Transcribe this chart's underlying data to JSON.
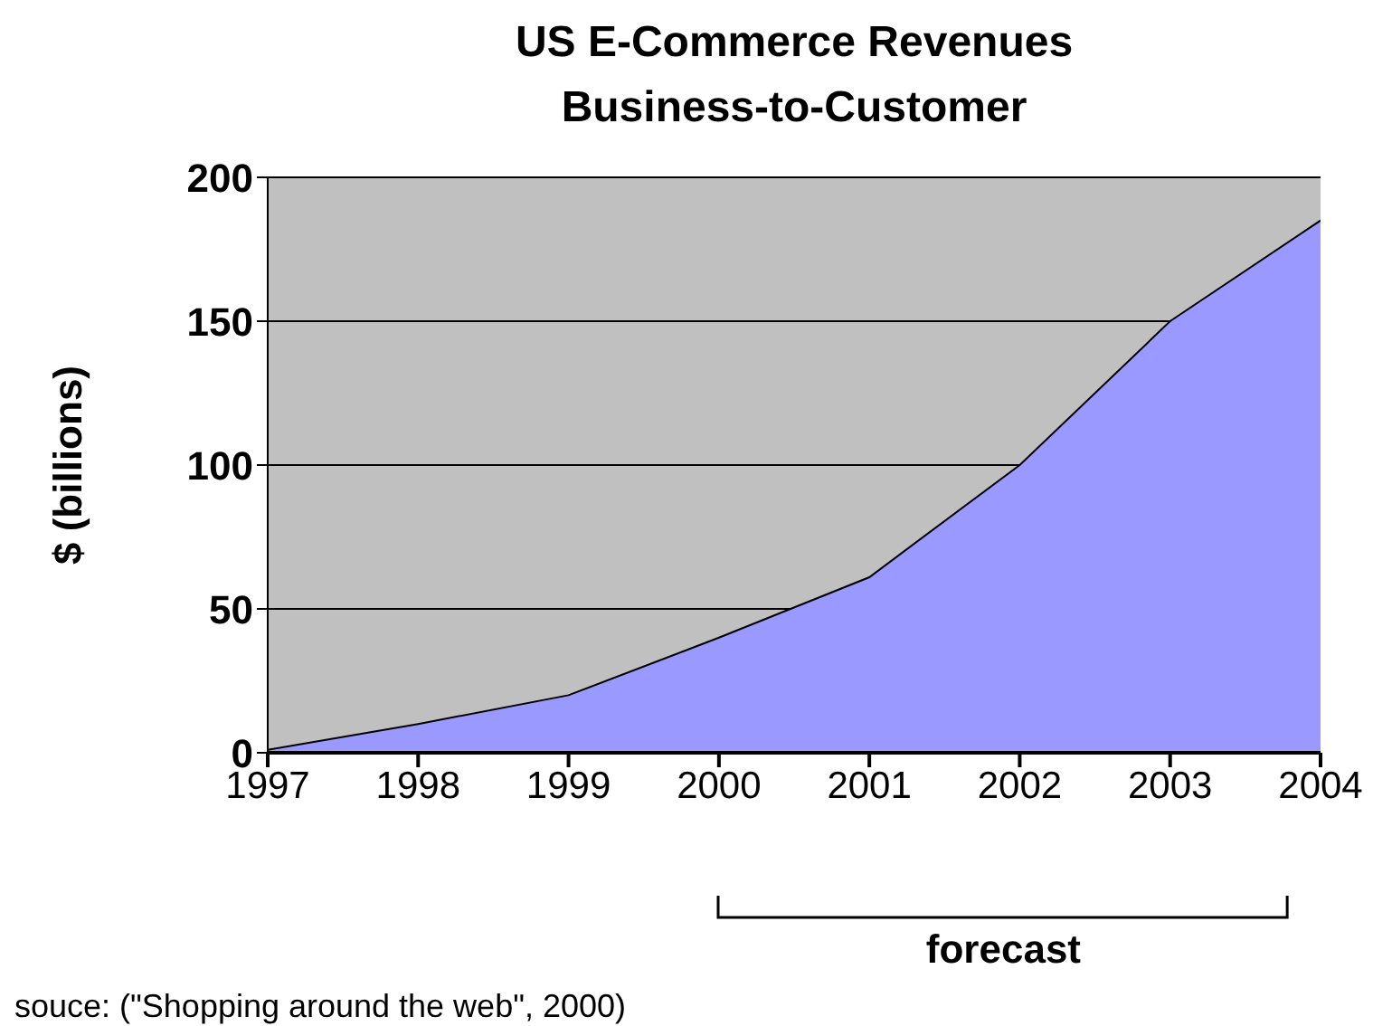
{
  "chart_data": {
    "type": "area",
    "title": "US E-Commerce Revenues",
    "subtitle": "Business-to-Customer",
    "ylabel": "$ (billions)",
    "x": [
      1997,
      1998,
      1999,
      2000,
      2001,
      2002,
      2003,
      2004
    ],
    "series": [
      {
        "color": "#9999ff",
        "values": [
          1,
          10,
          20,
          40,
          61,
          100,
          150,
          185
        ]
      }
    ],
    "xlim": [
      1997,
      2004
    ],
    "xticks": [
      1997,
      1998,
      1999,
      2000,
      2001,
      2002,
      2003,
      2004
    ],
    "ylim": [
      0,
      200
    ],
    "yticks": [
      0,
      50,
      100,
      150,
      200
    ],
    "grid": "y",
    "annotations": [
      {
        "text": "forecast"
      },
      "souce: (\"Shopping around the web\", 2000)"
    ]
  }
}
